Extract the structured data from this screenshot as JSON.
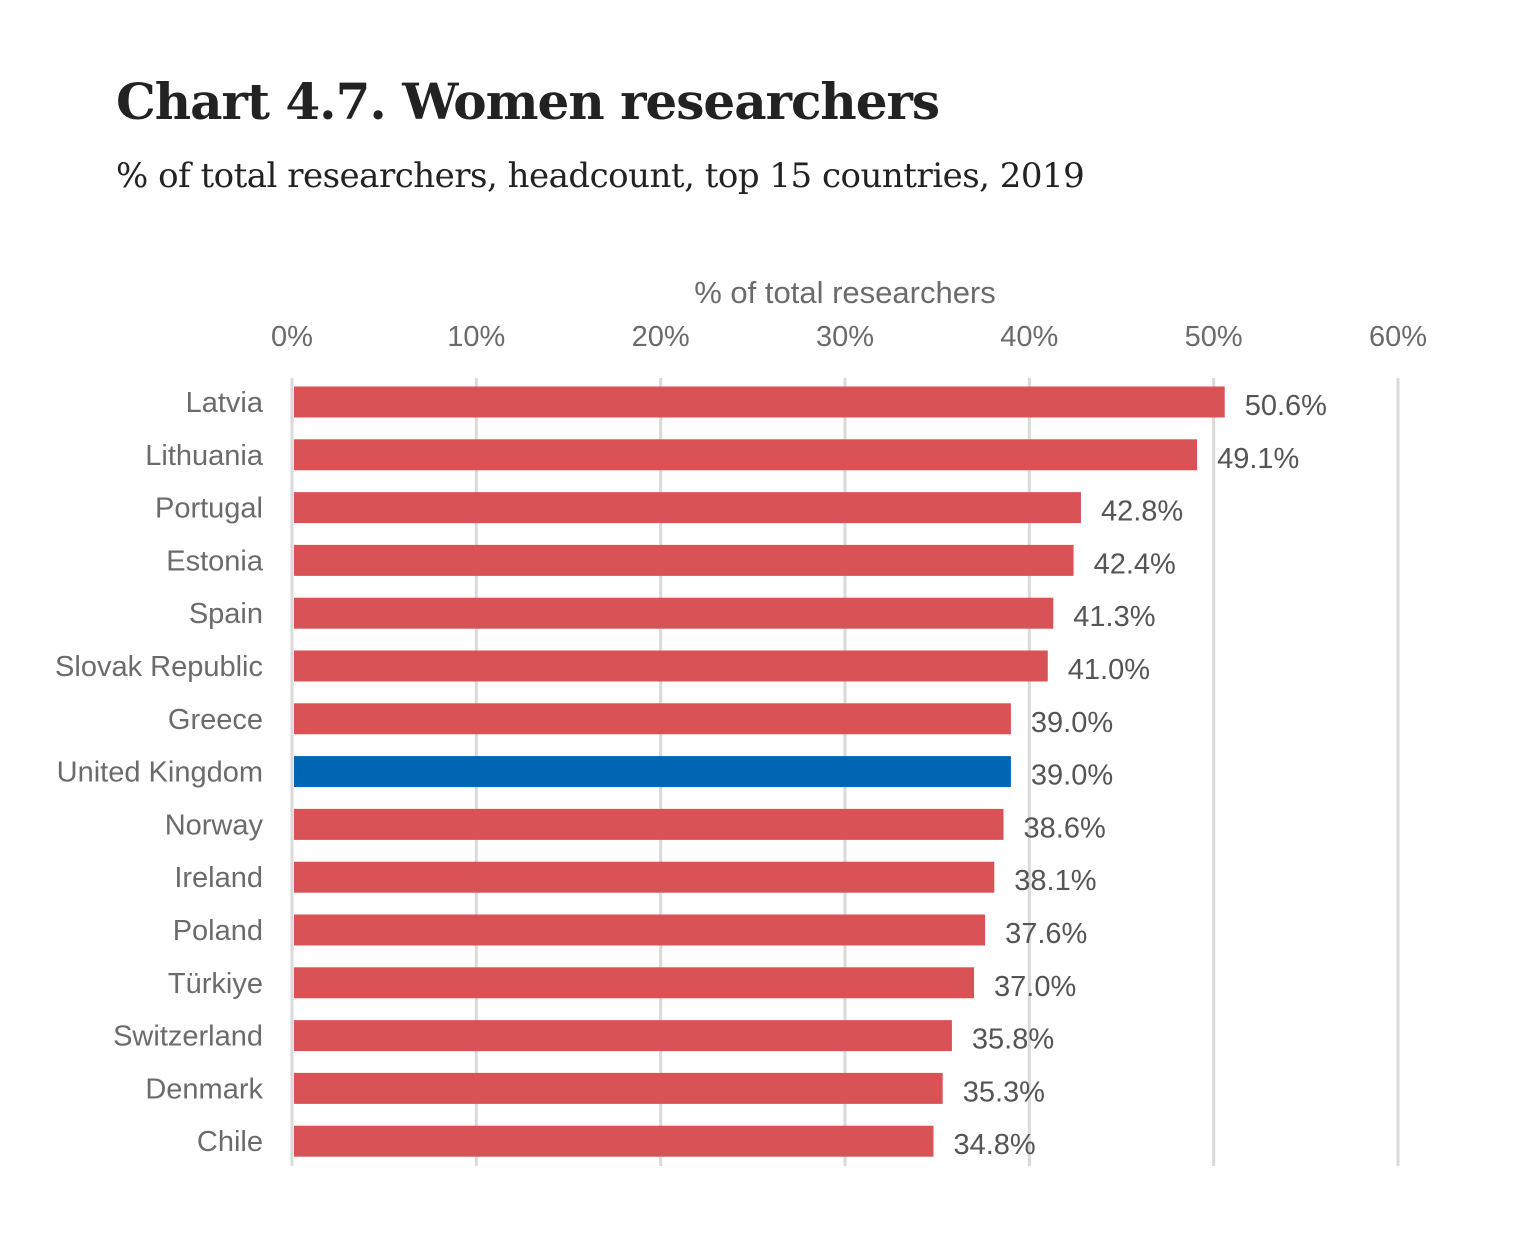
{
  "header": {
    "title": "Chart 4.7. Women researchers",
    "subtitle": "% of total researchers, headcount, top 15 countries, 2019"
  },
  "chart_data": {
    "type": "bar",
    "orientation": "horizontal",
    "title": "Chart 4.7. Women researchers",
    "subtitle": "% of total researchers, headcount, top 15 countries, 2019",
    "xlabel": "% of total researchers",
    "ylabel": "",
    "xlim": [
      0,
      60
    ],
    "xaxis_position": "top",
    "xticks": [
      0,
      10,
      20,
      30,
      40,
      50,
      60
    ],
    "xtick_labels": [
      "0%",
      "10%",
      "20%",
      "30%",
      "40%",
      "50%",
      "60%"
    ],
    "grid": true,
    "legend": "none",
    "categories": [
      "Latvia",
      "Lithuania",
      "Portugal",
      "Estonia",
      "Spain",
      "Slovak Republic",
      "Greece",
      "United Kingdom",
      "Norway",
      "Ireland",
      "Poland",
      "Türkiye",
      "Switzerland",
      "Denmark",
      "Chile"
    ],
    "values": [
      50.6,
      49.1,
      42.8,
      42.4,
      41.3,
      41.0,
      39.0,
      39.0,
      38.6,
      38.1,
      37.6,
      37.0,
      35.8,
      35.3,
      34.8
    ],
    "data_labels": [
      "50.6%",
      "49.1%",
      "42.8%",
      "42.4%",
      "41.3%",
      "41.0%",
      "39.0%",
      "39.0%",
      "38.6%",
      "38.1%",
      "37.6%",
      "37.0%",
      "35.8%",
      "35.3%",
      "34.8%"
    ],
    "colors": {
      "default": "#d95356",
      "highlight": "#0066b3",
      "highlight_category": "United Kingdom"
    }
  }
}
